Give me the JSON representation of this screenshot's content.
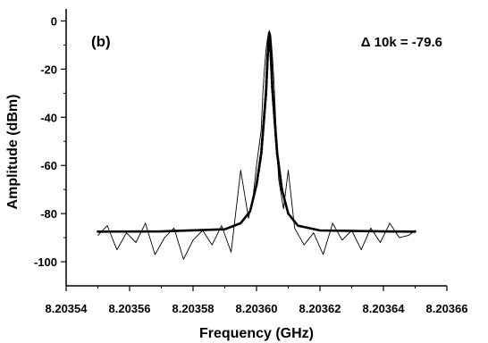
{
  "chart_data": {
    "type": "line",
    "panel_label": "(b)",
    "annotation": "Δ 10k = -79.6",
    "xlabel": "Frequency (GHz)",
    "ylabel": "Amplitude (dBm)",
    "xlim": [
      8.20354,
      8.20366
    ],
    "ylim": [
      -110,
      5
    ],
    "x_ticks": [
      "8.20354",
      "8.20356",
      "8.20358",
      "8.20360",
      "8.20362",
      "8.20364",
      "8.20366"
    ],
    "y_ticks": [
      "0",
      "-20",
      "-40",
      "-60",
      "-80",
      "-100"
    ],
    "grid": false,
    "legend": "none",
    "series": [
      {
        "style": "thin-solid",
        "color": "#000000",
        "x": [
          8.20355,
          8.203553,
          8.203556,
          8.203559,
          8.203562,
          8.203565,
          8.203568,
          8.203571,
          8.203574,
          8.203577,
          8.20358,
          8.203583,
          8.203586,
          8.203589,
          8.203592,
          8.203595,
          8.2035975,
          8.203599,
          8.2036,
          8.2036015,
          8.203602,
          8.2036025,
          8.203603,
          8.2036035,
          8.203604,
          8.2036045,
          8.203605,
          8.2036055,
          8.203606,
          8.2036065,
          8.203607,
          8.2036085,
          8.20361,
          8.203612,
          8.203615,
          8.203618,
          8.203621,
          8.203624,
          8.203627,
          8.20363,
          8.203633,
          8.203636,
          8.203639,
          8.203642,
          8.203645,
          8.203648,
          8.20365
        ],
        "y": [
          -89,
          -85,
          -95,
          -88,
          -92,
          -84,
          -97,
          -90,
          -86,
          -99,
          -91,
          -87,
          -93,
          -85,
          -96,
          -62,
          -82,
          -72,
          -60,
          -45,
          -30,
          -20,
          -12,
          -7,
          -4,
          -6,
          -14,
          -25,
          -40,
          -55,
          -66,
          -78,
          -62,
          -86,
          -93,
          -88,
          -97,
          -84,
          -91,
          -87,
          -95,
          -86,
          -92,
          -84,
          -90,
          -89,
          -87
        ]
      },
      {
        "style": "thick-solid",
        "color": "#000000",
        "x": [
          8.20355,
          8.20357,
          8.20359,
          8.203595,
          8.203598,
          8.2036,
          8.2036015,
          8.203603,
          8.2036035,
          8.203604,
          8.2036045,
          8.203605,
          8.2036065,
          8.203608,
          8.20361,
          8.203613,
          8.20362,
          8.20364,
          8.20365
        ],
        "y": [
          -87.5,
          -87.4,
          -86.5,
          -84,
          -79,
          -68,
          -55,
          -30,
          -15,
          -5,
          -14,
          -28,
          -55,
          -70,
          -80,
          -85,
          -87,
          -87.4,
          -87.5
        ]
      },
      {
        "style": "dotted",
        "color": "#000000",
        "x": [
          8.2036,
          8.2036015,
          8.203603,
          8.2036035,
          8.203604,
          8.2036045,
          8.203605,
          8.2036065,
          8.203608
        ],
        "y": [
          -68,
          -55,
          -30,
          -15,
          -5,
          -14,
          -28,
          -55,
          -70
        ]
      }
    ]
  }
}
